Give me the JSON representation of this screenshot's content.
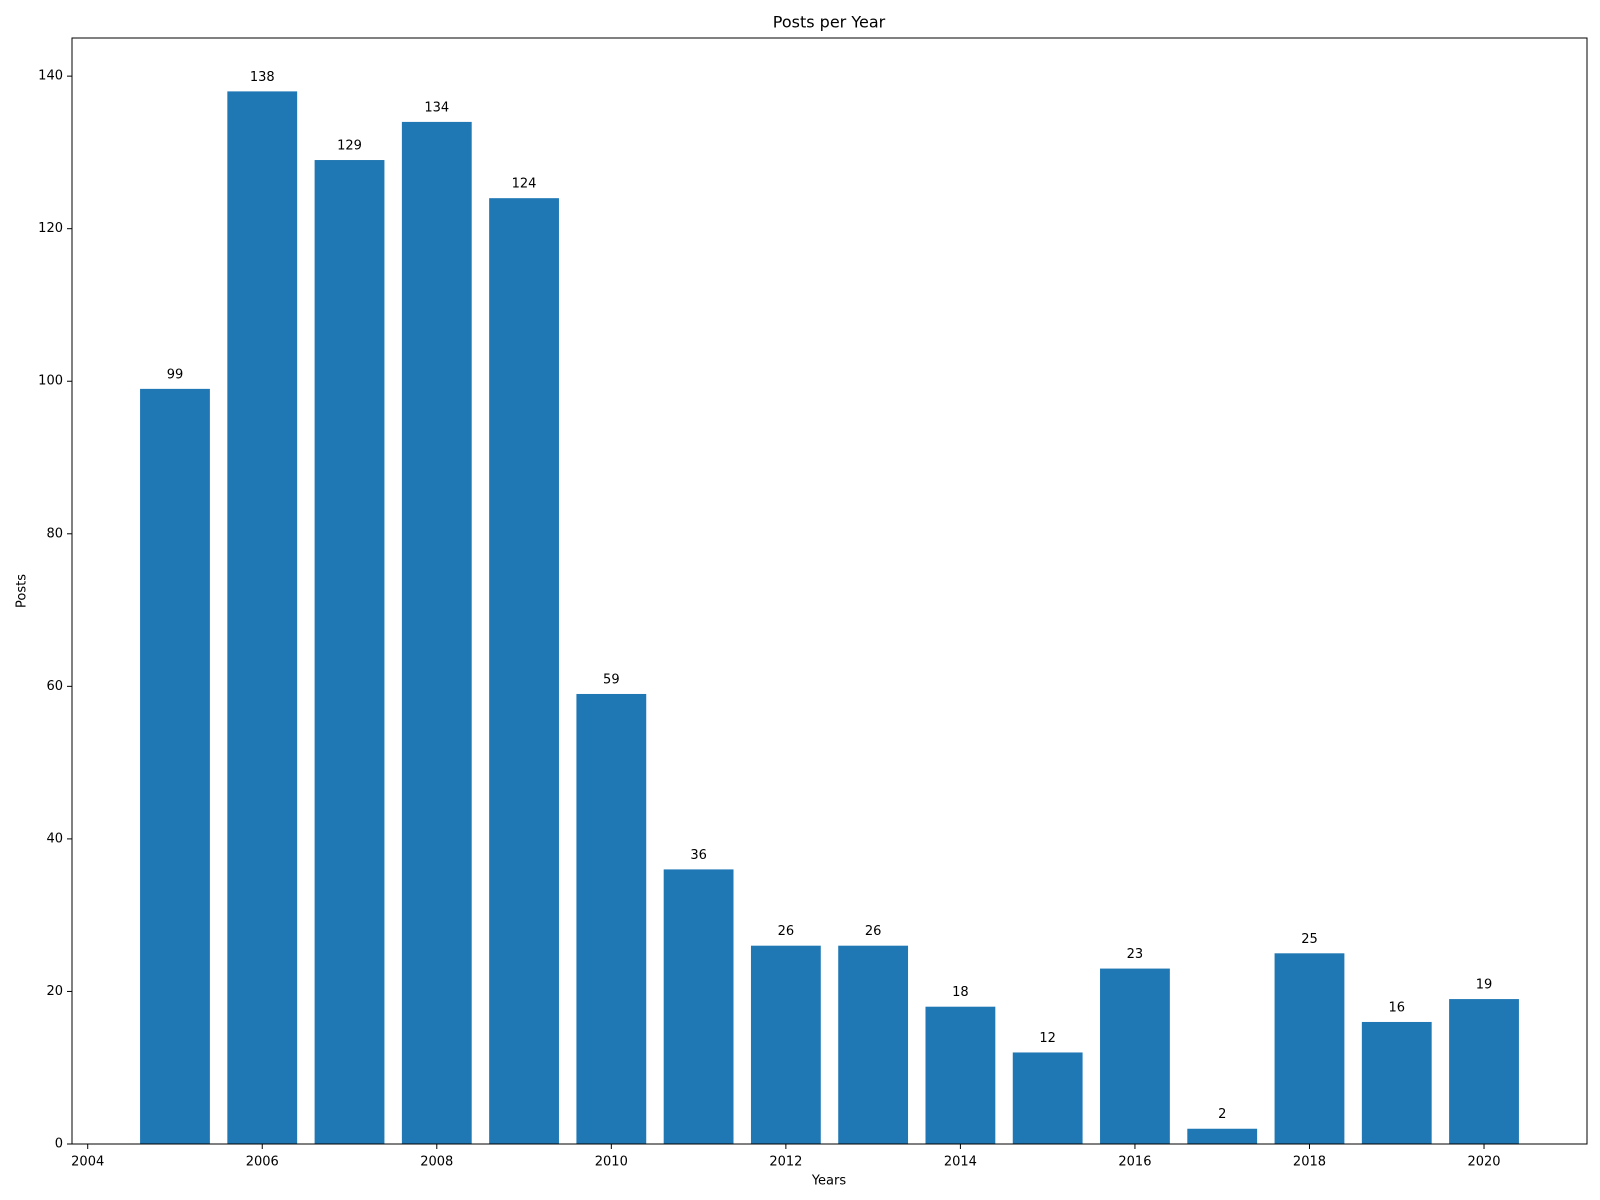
{
  "chart_data": {
    "type": "bar",
    "title": "Posts per Year",
    "x_label": "Years",
    "y_label": "Posts",
    "x": [
      2005,
      2006,
      2007,
      2008,
      2009,
      2010,
      2011,
      2012,
      2013,
      2014,
      2015,
      2016,
      2017,
      2018,
      2019,
      2020
    ],
    "values": [
      99,
      138,
      129,
      134,
      124,
      59,
      36,
      26,
      26,
      18,
      12,
      23,
      2,
      25,
      16,
      19
    ],
    "color": "#1f77b4",
    "xlim": [
      2003.82,
      2021.18
    ],
    "xticks": [
      2004,
      2006,
      2008,
      2010,
      2012,
      2014,
      2016,
      2018,
      2020
    ],
    "ylim": [
      0,
      145
    ],
    "yticks": [
      0,
      20,
      40,
      60,
      80,
      100,
      120,
      140
    ],
    "grid": false
  }
}
